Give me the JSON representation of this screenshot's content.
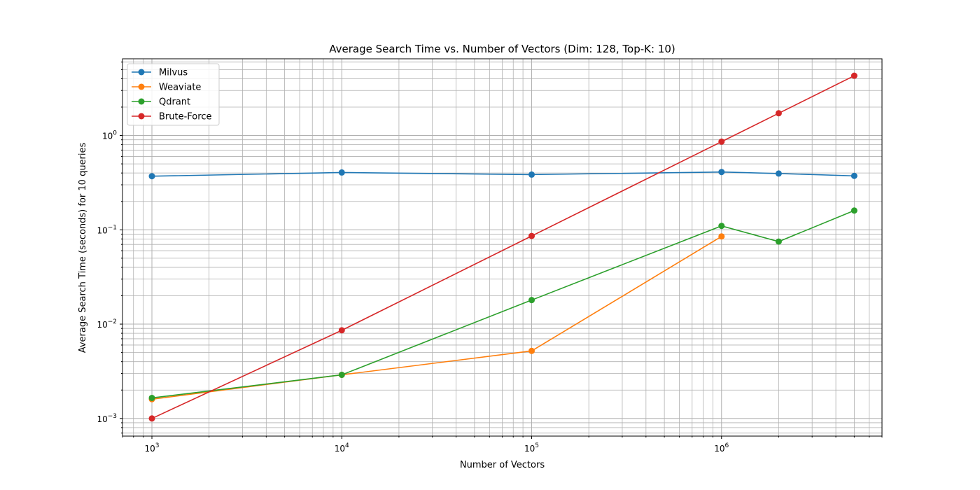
{
  "chart_data": {
    "type": "line",
    "title": "Average Search Time vs. Number of Vectors (Dim: 128, Top-K: 10)",
    "xlabel": "Number of Vectors",
    "ylabel": "Average Search Time (seconds) for 10 queries",
    "xscale": "log",
    "yscale": "log",
    "xlim": [
      700,
      7000000
    ],
    "ylim": [
      0.00065,
      6.5
    ],
    "grid": "both (major and minor)",
    "legend": "top-left",
    "x_ticks": [
      {
        "base": "10",
        "exp": "3"
      },
      {
        "base": "10",
        "exp": "4"
      },
      {
        "base": "10",
        "exp": "5"
      },
      {
        "base": "10",
        "exp": "6"
      }
    ],
    "y_ticks": [
      {
        "base": "10",
        "exp": "−3"
      },
      {
        "base": "10",
        "exp": "−2"
      },
      {
        "base": "10",
        "exp": "−1"
      },
      {
        "base": "10",
        "exp": "0"
      }
    ],
    "series": [
      {
        "name": "Milvus",
        "color": "#1f77b4",
        "x": [
          1000,
          10000,
          100000,
          1000000,
          2000000,
          5000000
        ],
        "values": [
          0.37,
          0.405,
          0.385,
          0.41,
          0.395,
          0.373
        ]
      },
      {
        "name": "Weaviate",
        "color": "#ff7f0e",
        "x": [
          1000,
          10000,
          100000,
          1000000
        ],
        "values": [
          0.0016,
          0.0029,
          0.0052,
          0.085
        ]
      },
      {
        "name": "Qdrant",
        "color": "#2ca02c",
        "x": [
          1000,
          10000,
          100000,
          1000000,
          2000000,
          5000000
        ],
        "values": [
          0.00165,
          0.0029,
          0.018,
          0.11,
          0.075,
          0.16
        ]
      },
      {
        "name": "Brute-Force",
        "color": "#d62728",
        "x": [
          1000,
          10000,
          100000,
          1000000,
          2000000,
          5000000
        ],
        "values": [
          0.001,
          0.0086,
          0.086,
          0.86,
          1.72,
          4.3
        ]
      }
    ]
  }
}
